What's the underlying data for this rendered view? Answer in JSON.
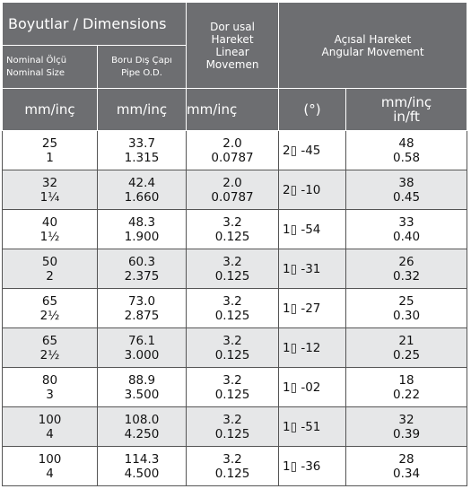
{
  "header": {
    "dimensions": "Boyutlar  /  Dimensions",
    "nominal": [
      "Nominal Ölçü",
      "Nominal Size"
    ],
    "od": [
      "Boru Dış Çapı",
      "Pipe O.D."
    ],
    "linear": [
      "Dor usal",
      "Hareket",
      "Linear",
      "Movemen"
    ],
    "angular": [
      "Açısal Hareket",
      "Angular Movement"
    ],
    "units": [
      "mm/inç",
      "mm/inç",
      "mm/inç",
      "(°)",
      [
        "mm/inç",
        "in/ft"
      ]
    ]
  },
  "table": {
    "rows": [
      [
        [
          "25",
          "1"
        ],
        [
          "33.7",
          "1.315"
        ],
        [
          "2.0",
          "0.0787"
        ],
        "2▯ -45",
        [
          "48",
          "0.58"
        ]
      ],
      [
        [
          "32",
          "1¼"
        ],
        [
          "42.4",
          "1.660"
        ],
        [
          "2.0",
          "0.0787"
        ],
        "2▯ -10",
        [
          "38",
          "0.45"
        ]
      ],
      [
        [
          "40",
          "1½"
        ],
        [
          "48.3",
          "1.900"
        ],
        [
          "3.2",
          "0.125"
        ],
        "1▯ -54",
        [
          "33",
          "0.40"
        ]
      ],
      [
        [
          "50",
          "2"
        ],
        [
          "60.3",
          "2.375"
        ],
        [
          "3.2",
          "0.125"
        ],
        "1▯ -31",
        [
          "26",
          "0.32"
        ]
      ],
      [
        [
          "65",
          "2½"
        ],
        [
          "73.0",
          "2.875"
        ],
        [
          "3.2",
          "0.125"
        ],
        "1▯ -27",
        [
          "25",
          "0.30"
        ]
      ],
      [
        [
          "65",
          "2½"
        ],
        [
          "76.1",
          "3.000"
        ],
        [
          "3.2",
          "0.125"
        ],
        "1▯ -12",
        [
          "21",
          "0.25"
        ]
      ],
      [
        [
          "80",
          "3"
        ],
        [
          "88.9",
          "3.500"
        ],
        [
          "3.2",
          "0.125"
        ],
        "1▯ -02",
        [
          "18",
          "0.22"
        ]
      ],
      [
        [
          "100",
          "4"
        ],
        [
          "108.0",
          "4.250"
        ],
        [
          "3.2",
          "0.125"
        ],
        "1▯ -51",
        [
          "32",
          "0.39"
        ]
      ],
      [
        [
          "100",
          "4"
        ],
        [
          "114.3",
          "4.500"
        ],
        [
          "3.2",
          "0.125"
        ],
        "1▯ -36",
        [
          "28",
          "0.34"
        ]
      ]
    ]
  }
}
